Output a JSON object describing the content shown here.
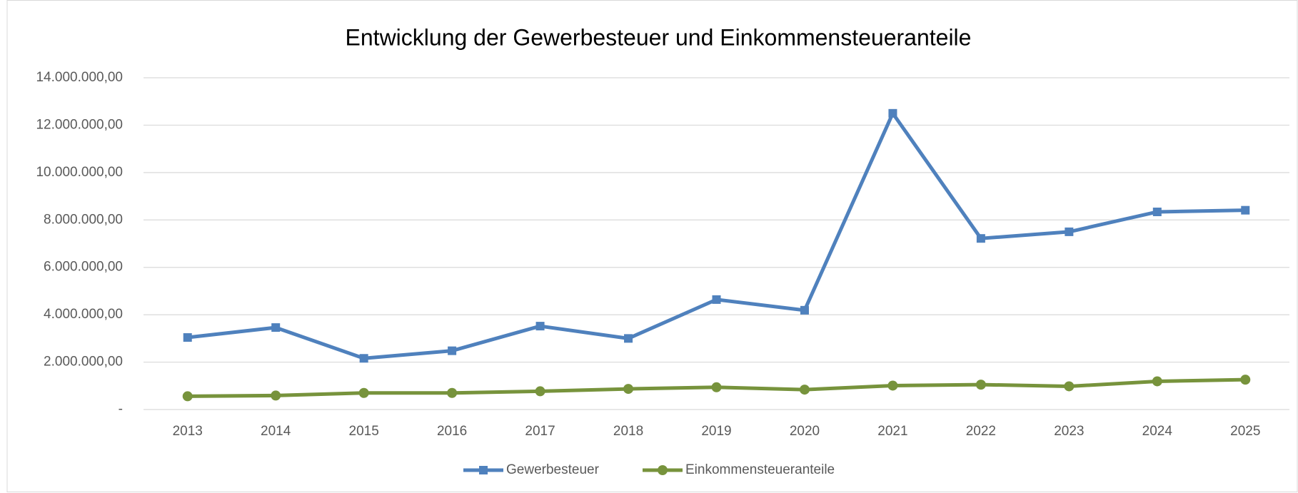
{
  "chart_data": {
    "type": "line",
    "title": "Entwicklung der Gewerbesteuer und Einkommensteueranteile",
    "categories": [
      "2013",
      "2014",
      "2015",
      "2016",
      "2017",
      "2018",
      "2019",
      "2020",
      "2021",
      "2022",
      "2023",
      "2024",
      "2025"
    ],
    "series": [
      {
        "name": "Gewerbesteuer",
        "color": "#4f81bd",
        "marker": "square",
        "values": [
          3040000,
          3460000,
          2160000,
          2480000,
          3520000,
          3000000,
          4640000,
          4190000,
          12500000,
          7220000,
          7500000,
          8340000,
          8410000
        ]
      },
      {
        "name": "Einkommensteueranteile",
        "color": "#77933c",
        "marker": "circle",
        "values": [
          560000,
          590000,
          700000,
          700000,
          770000,
          870000,
          940000,
          840000,
          1010000,
          1050000,
          980000,
          1190000,
          1260000
        ]
      }
    ],
    "ylim": [
      0,
      14000000
    ],
    "yticks": [
      {
        "value": 0,
        "label": "-"
      },
      {
        "value": 2000000,
        "label": "2.000.000,00"
      },
      {
        "value": 4000000,
        "label": "4.000.000,00"
      },
      {
        "value": 6000000,
        "label": "6.000.000,00"
      },
      {
        "value": 8000000,
        "label": "8.000.000,00"
      },
      {
        "value": 10000000,
        "label": "10.000.000,00"
      },
      {
        "value": 12000000,
        "label": "12.000.000,00"
      },
      {
        "value": 14000000,
        "label": "14.000.000,00"
      }
    ],
    "grid": true,
    "legend": "bottom"
  }
}
